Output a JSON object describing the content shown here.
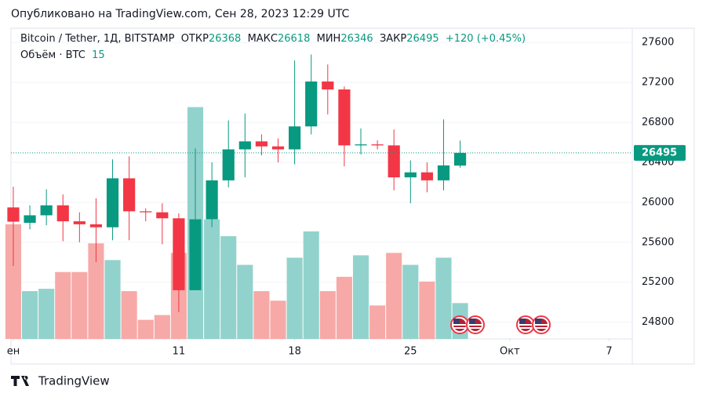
{
  "header": {
    "published": "Опубликовано на TradingView.com, Сен 28, 2023 12:29 UTC"
  },
  "chart_data": {
    "type": "candlestick",
    "symbol": "Bitcoin / Tether, 1Д, BITSTAMP",
    "ohlc_labels": [
      "ОТКР",
      "МАКС",
      "МИН",
      "ЗАКР"
    ],
    "change_label": "+120 (+0.45%)",
    "volume_label": "Объём · BTC",
    "x": [
      1,
      2,
      3,
      4,
      5,
      6,
      7,
      8,
      9,
      10,
      11,
      12,
      13,
      14,
      15,
      16,
      17,
      18,
      19,
      20,
      21,
      22,
      23,
      24,
      25,
      26,
      27,
      28
    ],
    "open": [
      25949,
      25795,
      25870,
      25970,
      25810,
      25780,
      25750,
      26240,
      25910,
      25900,
      25840,
      25120,
      25830,
      26220,
      26530,
      26610,
      26560,
      26530,
      26760,
      27210,
      27130,
      26570,
      26580,
      26570,
      26250,
      26300,
      26220,
      26368
    ],
    "high": [
      26156,
      25970,
      26130,
      26080,
      25900,
      26040,
      26430,
      26460,
      25940,
      25990,
      25890,
      26540,
      26400,
      26820,
      26890,
      26680,
      26640,
      27420,
      27480,
      27380,
      27160,
      26740,
      26620,
      26730,
      26420,
      26400,
      26830,
      26618
    ],
    "low": [
      25362,
      25730,
      25770,
      25610,
      25600,
      25400,
      25620,
      25620,
      25810,
      25580,
      24900,
      25130,
      25750,
      26150,
      26250,
      26470,
      26400,
      26380,
      26680,
      26880,
      26360,
      26480,
      26530,
      26120,
      25990,
      26100,
      26120,
      26346
    ],
    "close": [
      25806,
      25870,
      25970,
      25810,
      25780,
      25750,
      26240,
      25910,
      25900,
      25840,
      25120,
      25830,
      26220,
      26530,
      26610,
      26560,
      26530,
      26760,
      27210,
      27130,
      26570,
      26580,
      26570,
      26250,
      26300,
      26220,
      26370,
      26495
    ],
    "volume": [
      48,
      20,
      21,
      28,
      28,
      40,
      33,
      20,
      8,
      10,
      36,
      97,
      50,
      43,
      31,
      20,
      16,
      34,
      45,
      20,
      26,
      35,
      14,
      36,
      31,
      24,
      34,
      15
    ],
    "up_color": "#089981",
    "down_color": "#f23645",
    "up_volume_color": "#92d2cc",
    "down_volume_color": "#f7a9a7",
    "xlim": [
      0.86,
      38.4
    ],
    "xticks": [
      {
        "value": 1,
        "label": "ен"
      },
      11,
      18,
      25,
      {
        "value": 31,
        "label": "Окт"
      },
      {
        "value": 37,
        "label": "7"
      }
    ],
    "ylim": [
      24632,
      27743
    ],
    "yticks": [
      {
        "value": 24800,
        "label": "24800"
      },
      25200,
      25600,
      26000,
      26400,
      26800,
      27200,
      27600
    ],
    "vlim": [
      0,
      130
    ]
  },
  "footer": {
    "brand": "TradingView"
  }
}
